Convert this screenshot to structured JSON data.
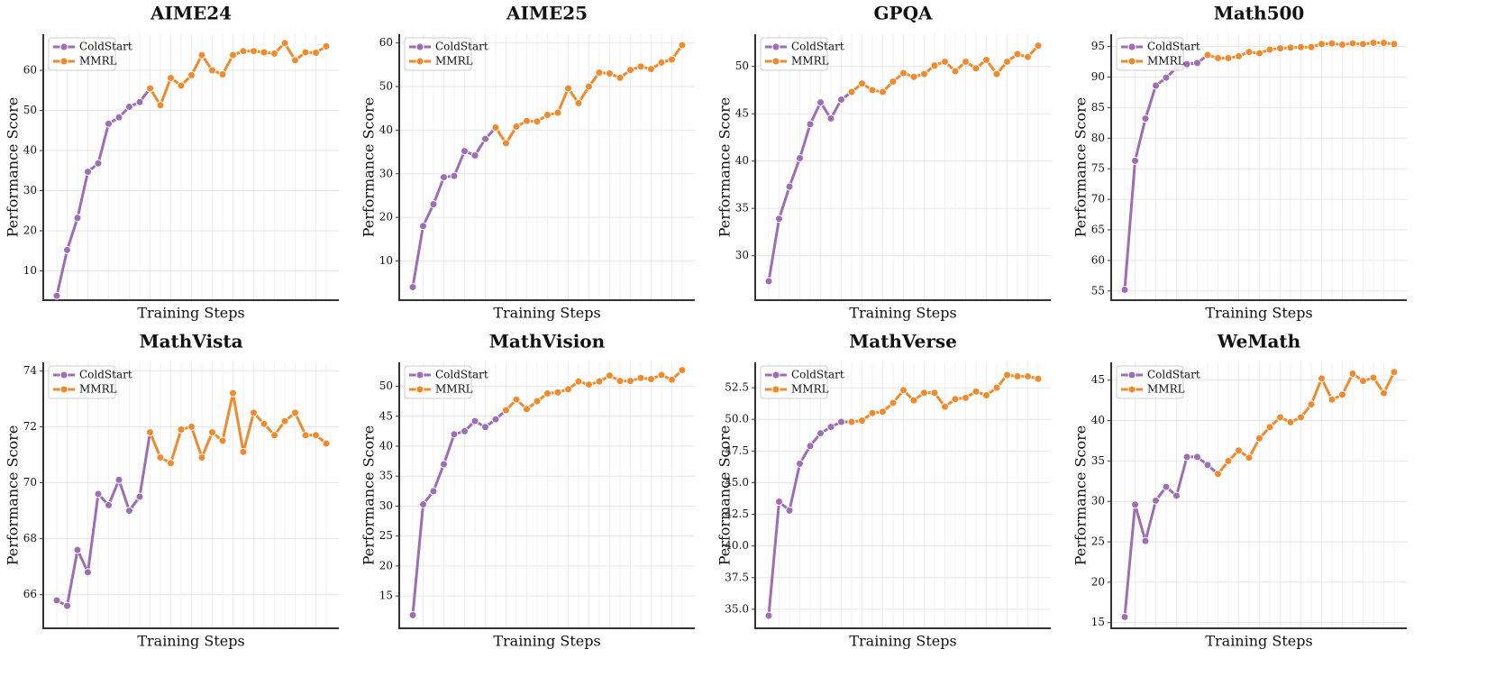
{
  "chart_data": [
    {
      "type": "line",
      "title": "AIME24",
      "xlabel": "Training Steps",
      "ylabel": "Performance Score",
      "categories": [
        null,
        null,
        null,
        null,
        null,
        null,
        null,
        null,
        null,
        null,
        null,
        null,
        null,
        null,
        null,
        null,
        null,
        null,
        null,
        null,
        null,
        null,
        null,
        null,
        null,
        null,
        null
      ],
      "series": [
        {
          "name": "ColdStart",
          "color": "#9d6db5",
          "values": [
            3.8,
            15.2,
            23.2,
            34.7,
            36.8,
            46.7,
            48.3,
            50.9,
            52.1,
            55.5,
            null,
            null,
            null,
            null,
            null,
            null,
            null,
            null,
            null,
            null,
            null,
            null,
            null,
            null,
            null,
            null,
            null
          ]
        },
        {
          "name": "MMRL",
          "color": "#f08a2c",
          "values": [
            null,
            null,
            null,
            null,
            null,
            null,
            null,
            null,
            null,
            55.5,
            51.3,
            58.1,
            56.2,
            58.8,
            63.8,
            60.0,
            59.0,
            63.8,
            64.8,
            64.8,
            64.5,
            64.2,
            66.8,
            62.5,
            64.5,
            64.4,
            66.0
          ]
        }
      ],
      "ylim": [
        2.7,
        69
      ],
      "yticks": [
        10,
        20,
        30,
        40,
        50,
        60
      ],
      "grid": true,
      "legend": "upper left"
    },
    {
      "type": "line",
      "title": "AIME25",
      "xlabel": "Training Steps",
      "ylabel": "Performance Score",
      "categories": [
        null,
        null,
        null,
        null,
        null,
        null,
        null,
        null,
        null,
        null,
        null,
        null,
        null,
        null,
        null,
        null,
        null,
        null,
        null,
        null,
        null,
        null,
        null,
        null,
        null,
        null,
        null
      ],
      "series": [
        {
          "name": "ColdStart",
          "color": "#9d6db5",
          "values": [
            4,
            18,
            23,
            29.2,
            29.5,
            35.2,
            34.2,
            38,
            40.6,
            null,
            null,
            null,
            null,
            null,
            null,
            null,
            null,
            null,
            null,
            null,
            null,
            null,
            null,
            null,
            null,
            null,
            null
          ]
        },
        {
          "name": "MMRL",
          "color": "#f08a2c",
          "values": [
            null,
            null,
            null,
            null,
            null,
            null,
            null,
            null,
            40.6,
            37.0,
            40.8,
            42.1,
            42.0,
            43.5,
            44.0,
            49.6,
            46.2,
            50.0,
            53.2,
            53.0,
            52.0,
            53.8,
            54.6,
            54.0,
            55.5,
            56.2,
            59.5
          ]
        }
      ],
      "ylim": [
        1,
        62
      ],
      "yticks": [
        10,
        20,
        30,
        40,
        50,
        60
      ],
      "grid": true,
      "legend": "upper left"
    },
    {
      "type": "line",
      "title": "GPQA",
      "xlabel": "Training Steps",
      "ylabel": "Performance Score",
      "categories": [
        null,
        null,
        null,
        null,
        null,
        null,
        null,
        null,
        null,
        null,
        null,
        null,
        null,
        null,
        null,
        null,
        null,
        null,
        null,
        null,
        null,
        null,
        null,
        null,
        null,
        null,
        null
      ],
      "series": [
        {
          "name": "ColdStart",
          "color": "#9d6db5",
          "values": [
            27.3,
            33.9,
            37.3,
            40.3,
            43.9,
            46.2,
            44.5,
            46.5,
            47.3,
            null,
            null,
            null,
            null,
            null,
            null,
            null,
            null,
            null,
            null,
            null,
            null,
            null,
            null,
            null,
            null,
            null,
            null
          ]
        },
        {
          "name": "MMRL",
          "color": "#f08a2c",
          "values": [
            null,
            null,
            null,
            null,
            null,
            null,
            null,
            null,
            47.3,
            48.2,
            47.5,
            47.3,
            48.4,
            49.3,
            48.9,
            49.2,
            50.1,
            50.5,
            49.5,
            50.5,
            49.8,
            50.7,
            49.2,
            50.5,
            51.3,
            51.0,
            52.2
          ]
        }
      ],
      "ylim": [
        25.3,
        53.4
      ],
      "yticks": [
        30,
        35,
        40,
        45,
        50
      ],
      "grid": true,
      "legend": "upper left"
    },
    {
      "type": "line",
      "title": "Math500",
      "xlabel": "Training Steps",
      "ylabel": "Performance Score",
      "categories": [
        null,
        null,
        null,
        null,
        null,
        null,
        null,
        null,
        null,
        null,
        null,
        null,
        null,
        null,
        null,
        null,
        null,
        null,
        null,
        null,
        null,
        null,
        null,
        null,
        null,
        null,
        null
      ],
      "series": [
        {
          "name": "ColdStart",
          "color": "#9d6db5",
          "values": [
            55.2,
            76.3,
            83.2,
            88.6,
            89.9,
            91.5,
            92.1,
            92.3,
            93.6,
            null,
            null,
            null,
            null,
            null,
            null,
            null,
            null,
            null,
            null,
            null,
            null,
            null,
            null,
            null,
            null,
            null,
            null
          ]
        },
        {
          "name": "MMRL",
          "color": "#f08a2c",
          "values": [
            null,
            null,
            null,
            null,
            null,
            null,
            null,
            null,
            93.6,
            93.1,
            93.1,
            93.4,
            94.1,
            93.9,
            94.5,
            94.7,
            94.8,
            94.9,
            94.9,
            95.4,
            95.5,
            95.3,
            95.5,
            95.4,
            95.6,
            95.6,
            95.4
          ]
        }
      ],
      "ylim": [
        53.5,
        97
      ],
      "yticks": [
        55,
        60,
        65,
        70,
        75,
        80,
        85,
        90,
        95
      ],
      "grid": true,
      "legend": "upper left"
    },
    {
      "type": "line",
      "title": "MathVista",
      "xlabel": "Training Steps",
      "ylabel": "Performance Score",
      "categories": [
        null,
        null,
        null,
        null,
        null,
        null,
        null,
        null,
        null,
        null,
        null,
        null,
        null,
        null,
        null,
        null,
        null,
        null,
        null,
        null,
        null,
        null,
        null,
        null,
        null,
        null,
        null
      ],
      "series": [
        {
          "name": "ColdStart",
          "color": "#9d6db5",
          "values": [
            65.8,
            65.6,
            67.6,
            66.8,
            69.6,
            69.2,
            70.1,
            69.0,
            69.5,
            71.8,
            null,
            null,
            null,
            null,
            null,
            null,
            null,
            null,
            null,
            null,
            null,
            null,
            null,
            null,
            null,
            null,
            null
          ]
        },
        {
          "name": "MMRL",
          "color": "#f08a2c",
          "values": [
            null,
            null,
            null,
            null,
            null,
            null,
            null,
            null,
            null,
            71.8,
            70.9,
            70.7,
            71.9,
            72.0,
            70.9,
            71.8,
            71.5,
            73.2,
            71.1,
            72.5,
            72.1,
            71.7,
            72.2,
            72.5,
            71.7,
            71.7,
            71.4
          ]
        }
      ],
      "ylim": [
        64.8,
        74.3
      ],
      "yticks": [
        66,
        68,
        70,
        72,
        74
      ],
      "grid": true,
      "legend": "upper left"
    },
    {
      "type": "line",
      "title": "MathVision",
      "xlabel": "Training Steps",
      "ylabel": "Performance Score",
      "categories": [
        null,
        null,
        null,
        null,
        null,
        null,
        null,
        null,
        null,
        null,
        null,
        null,
        null,
        null,
        null,
        null,
        null,
        null,
        null,
        null,
        null,
        null,
        null,
        null,
        null,
        null,
        null
      ],
      "series": [
        {
          "name": "ColdStart",
          "color": "#9d6db5",
          "values": [
            11.8,
            30.3,
            32.5,
            37.0,
            42.0,
            42.5,
            44.2,
            43.2,
            44.5,
            46.0,
            null,
            null,
            null,
            null,
            null,
            null,
            null,
            null,
            null,
            null,
            null,
            null,
            null,
            null,
            null,
            null,
            null
          ]
        },
        {
          "name": "MMRL",
          "color": "#f08a2c",
          "values": [
            null,
            null,
            null,
            null,
            null,
            null,
            null,
            null,
            null,
            46.0,
            47.8,
            46.2,
            47.5,
            48.8,
            49.0,
            49.5,
            50.8,
            50.3,
            50.8,
            51.8,
            50.9,
            50.9,
            51.4,
            51.2,
            51.9,
            51.1,
            52.7
          ]
        }
      ],
      "ylim": [
        9.6,
        54
      ],
      "yticks": [
        15,
        20,
        25,
        30,
        35,
        40,
        45,
        50
      ],
      "grid": true,
      "legend": "upper left"
    },
    {
      "type": "line",
      "title": "MathVerse",
      "xlabel": "Training Steps",
      "ylabel": "Performance Score",
      "categories": [
        null,
        null,
        null,
        null,
        null,
        null,
        null,
        null,
        null,
        null,
        null,
        null,
        null,
        null,
        null,
        null,
        null,
        null,
        null,
        null,
        null,
        null,
        null,
        null,
        null,
        null,
        null
      ],
      "series": [
        {
          "name": "ColdStart",
          "color": "#9d6db5",
          "values": [
            34.5,
            43.5,
            42.8,
            46.5,
            47.9,
            48.9,
            49.4,
            49.8,
            49.8,
            null,
            null,
            null,
            null,
            null,
            null,
            null,
            null,
            null,
            null,
            null,
            null,
            null,
            null,
            null,
            null,
            null,
            null
          ]
        },
        {
          "name": "MMRL",
          "color": "#f08a2c",
          "values": [
            null,
            null,
            null,
            null,
            null,
            null,
            null,
            null,
            49.8,
            49.9,
            50.5,
            50.6,
            51.3,
            52.3,
            51.5,
            52.1,
            52.1,
            51.0,
            51.6,
            51.7,
            52.2,
            51.9,
            52.5,
            53.5,
            53.4,
            53.4,
            53.2
          ]
        }
      ],
      "ylim": [
        33.5,
        54.5
      ],
      "yticks": [
        {
          "value": 35,
          "label": "35.0"
        },
        37.5,
        {
          "value": 40,
          "label": "40.0"
        },
        42.5,
        {
          "value": 45,
          "label": "45.0"
        },
        47.5,
        {
          "value": 50,
          "label": "50.0"
        },
        52.5
      ],
      "grid": true,
      "legend": "upper left"
    },
    {
      "type": "line",
      "title": "WeMath",
      "xlabel": "Training Steps",
      "ylabel": "Performance Score",
      "categories": [
        null,
        null,
        null,
        null,
        null,
        null,
        null,
        null,
        null,
        null,
        null,
        null,
        null,
        null,
        null,
        null,
        null,
        null,
        null,
        null,
        null,
        null,
        null,
        null,
        null,
        null,
        null
      ],
      "series": [
        {
          "name": "ColdStart",
          "color": "#9d6db5",
          "values": [
            15.7,
            29.6,
            25.1,
            30.1,
            31.8,
            30.7,
            35.5,
            35.5,
            34.5,
            33.4,
            null,
            null,
            null,
            null,
            null,
            null,
            null,
            null,
            null,
            null,
            null,
            null,
            null,
            null,
            null,
            null,
            null
          ]
        },
        {
          "name": "MMRL",
          "color": "#f08a2c",
          "values": [
            null,
            null,
            null,
            null,
            null,
            null,
            null,
            null,
            null,
            33.4,
            35.0,
            36.3,
            35.4,
            37.8,
            39.2,
            40.4,
            39.8,
            40.4,
            42.0,
            45.2,
            42.6,
            43.2,
            45.8,
            44.9,
            45.3,
            43.4,
            46.0
          ]
        }
      ],
      "ylim": [
        14.3,
        47.2
      ],
      "yticks": [
        15,
        20,
        25,
        30,
        35,
        40,
        45
      ],
      "grid": true,
      "legend": "upper left"
    }
  ]
}
